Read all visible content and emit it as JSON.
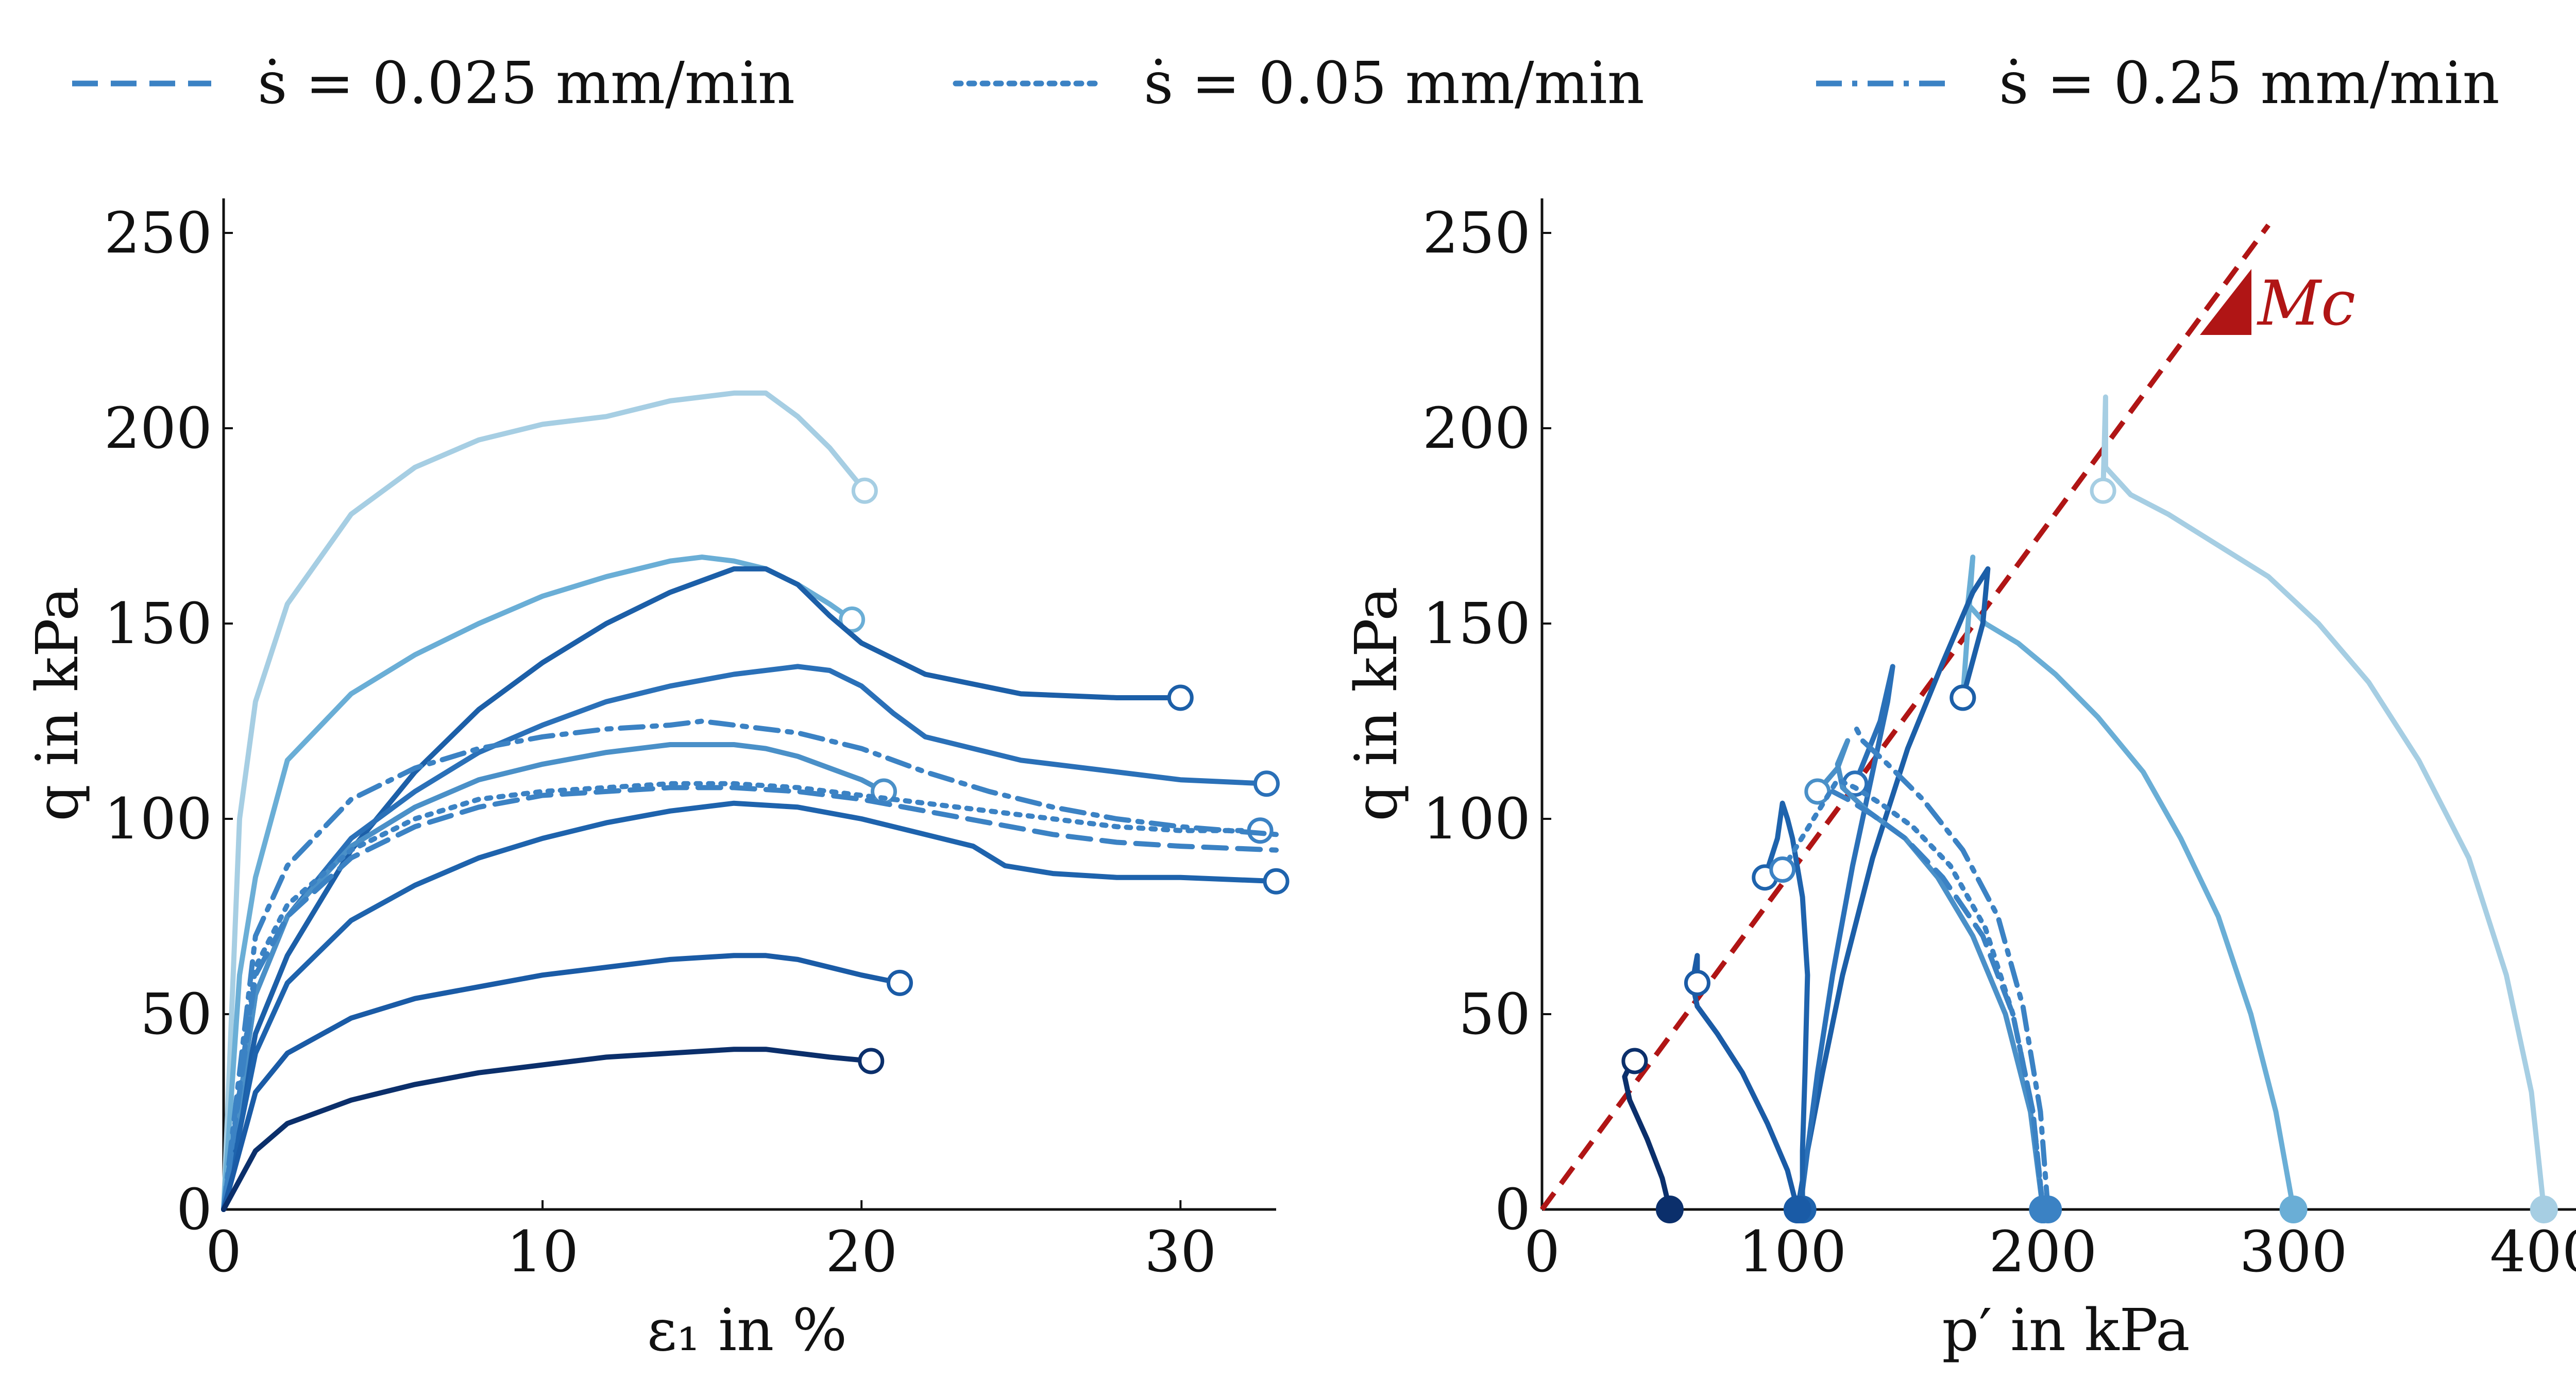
{
  "chart_data": [
    {
      "type": "line",
      "xlabel": "ε₁ in %",
      "ylabel": "q in kPa",
      "xlim": [
        0,
        33
      ],
      "ylim": [
        0,
        260
      ],
      "xticks": [
        "0",
        "10",
        "20",
        "30"
      ],
      "yticks": [
        "0",
        "50",
        "100",
        "150",
        "200",
        "250"
      ],
      "grid": false,
      "legend_position": "top, outside plot",
      "series": [
        {
          "color": "#a6cee3",
          "linestyle": "solid",
          "end_marker": "open",
          "x": [
            0,
            0.5,
            1,
            2,
            4,
            6,
            8,
            10,
            12,
            14,
            16,
            17,
            18,
            19,
            20.1
          ],
          "y": [
            0,
            100,
            130,
            155,
            178,
            190,
            197,
            201,
            203,
            207,
            209,
            209,
            203,
            195,
            184
          ]
        },
        {
          "color": "#6aaed6",
          "linestyle": "solid",
          "end_marker": "open",
          "x": [
            0,
            0.5,
            1,
            2,
            4,
            6,
            8,
            10,
            12,
            14,
            15,
            16,
            17,
            18,
            19,
            19.7
          ],
          "y": [
            0,
            60,
            85,
            115,
            132,
            142,
            150,
            157,
            162,
            166,
            167,
            166,
            164,
            160,
            155,
            151
          ]
        },
        {
          "color": "#1c5fa8",
          "linestyle": "solid",
          "end_marker": "open",
          "x": [
            0,
            1,
            2,
            4,
            6,
            8,
            10,
            12,
            14,
            16,
            17,
            18,
            19,
            20,
            22,
            25,
            28,
            30
          ],
          "y": [
            0,
            45,
            65,
            92,
            112,
            128,
            140,
            150,
            158,
            164,
            164,
            160,
            152,
            145,
            137,
            132,
            131,
            131
          ]
        },
        {
          "color": "#2a70b8",
          "linestyle": "solid",
          "end_marker": "open",
          "x": [
            0,
            1,
            2,
            4,
            6,
            8,
            10,
            12,
            14,
            16,
            18,
            19,
            20,
            21,
            22,
            25,
            28,
            30,
            32.7
          ],
          "y": [
            0,
            55,
            75,
            95,
            107,
            117,
            124,
            130,
            134,
            137,
            139,
            138,
            134,
            127,
            121,
            115,
            112,
            110,
            109
          ]
        },
        {
          "color": "#4a90c8",
          "linestyle": "solid",
          "end_marker": "open",
          "x": [
            0,
            1,
            2,
            4,
            6,
            8,
            10,
            12,
            14,
            16,
            17,
            18,
            19,
            20,
            20.7
          ],
          "y": [
            0,
            55,
            75,
            93,
            103,
            110,
            114,
            117,
            119,
            119,
            118,
            116,
            113,
            110,
            107
          ]
        },
        {
          "color": "#1e63ad",
          "linestyle": "solid",
          "end_marker": "open",
          "x": [
            0,
            1,
            2,
            4,
            6,
            8,
            10,
            12,
            14,
            16,
            18,
            20,
            22,
            23.5,
            24.5,
            26,
            28,
            30,
            33
          ],
          "y": [
            0,
            40,
            58,
            74,
            83,
            90,
            95,
            99,
            102,
            104,
            103,
            100,
            96,
            93,
            88,
            86,
            85,
            85,
            84
          ]
        },
        {
          "color": "#3b82c4",
          "linestyle": "dashed",
          "end_marker": "none",
          "x": [
            0,
            1,
            2,
            4,
            6,
            8,
            10,
            12,
            14,
            16,
            18,
            20,
            22,
            24,
            26,
            28,
            30,
            33
          ],
          "y": [
            0,
            60,
            75,
            90,
            98,
            103,
            106,
            107,
            108,
            108,
            107,
            105,
            102,
            99,
            96,
            94,
            93,
            92
          ]
        },
        {
          "color": "#3b82c4",
          "linestyle": "dotted",
          "end_marker": "open",
          "x": [
            0,
            1,
            2,
            4,
            6,
            8,
            10,
            12,
            14,
            16,
            18,
            20,
            22,
            24,
            26,
            28,
            30,
            32.5
          ],
          "y": [
            0,
            62,
            78,
            92,
            100,
            105,
            107,
            108,
            109,
            109,
            108,
            106,
            104,
            102,
            100,
            98,
            97,
            97
          ]
        },
        {
          "color": "#3b82c4",
          "linestyle": "dashdot",
          "end_marker": "none",
          "x": [
            0,
            1,
            2,
            4,
            6,
            8,
            10,
            12,
            14,
            15,
            16,
            18,
            20,
            22,
            24,
            26,
            28,
            30,
            33
          ],
          "y": [
            0,
            70,
            88,
            105,
            113,
            118,
            121,
            123,
            124,
            125,
            124,
            122,
            118,
            112,
            107,
            103,
            100,
            98,
            96
          ]
        },
        {
          "color": "#1a5ba6",
          "linestyle": "solid",
          "end_marker": "open",
          "x": [
            0,
            1,
            2,
            4,
            6,
            8,
            10,
            12,
            14,
            16,
            17,
            18,
            19,
            20,
            21.2
          ],
          "y": [
            0,
            30,
            40,
            49,
            54,
            57,
            60,
            62,
            64,
            65,
            65,
            64,
            62,
            60,
            58
          ]
        },
        {
          "color": "#0b2f6b",
          "linestyle": "solid",
          "end_marker": "open",
          "x": [
            0,
            1,
            2,
            4,
            6,
            8,
            10,
            12,
            14,
            16,
            17,
            18,
            19,
            20.3
          ],
          "y": [
            0,
            15,
            22,
            28,
            32,
            35,
            37,
            39,
            40,
            41,
            41,
            40,
            39,
            38
          ]
        }
      ]
    },
    {
      "type": "line",
      "xlabel": "p′ in kPa",
      "ylabel": "q in kPa",
      "xlim": [
        0,
        420
      ],
      "ylim": [
        0,
        260
      ],
      "xticks": [
        "0",
        "100",
        "200",
        "300",
        "400"
      ],
      "yticks": [
        "0",
        "50",
        "100",
        "150",
        "200",
        "250"
      ],
      "grid": false,
      "annotation": "Mc",
      "critical_state_line": {
        "color": "#b01515",
        "linestyle": "dashed",
        "x": [
          0,
          290
        ],
        "y": [
          0,
          252
        ]
      },
      "series": [
        {
          "color": "#a6cee3",
          "linestyle": "solid",
          "start_marker": "filled",
          "end_marker": "open",
          "x": [
            400,
            395,
            385,
            370,
            350,
            330,
            310,
            290,
            270,
            250,
            235,
            225,
            225,
            224
          ],
          "y": [
            0,
            30,
            60,
            90,
            115,
            135,
            150,
            162,
            170,
            178,
            183,
            190,
            208,
            184
          ]
        },
        {
          "color": "#6aaed6",
          "linestyle": "solid",
          "start_marker": "filled",
          "end_marker": "open",
          "x": [
            300,
            293,
            283,
            270,
            255,
            240,
            222,
            205,
            190,
            177,
            170,
            172,
            168
          ],
          "y": [
            0,
            25,
            50,
            75,
            95,
            112,
            126,
            137,
            145,
            150,
            155,
            167,
            131
          ]
        },
        {
          "color": "#1c5fa8",
          "linestyle": "solid",
          "start_marker": "filled",
          "end_marker": "open",
          "x": [
            102,
            106,
            112,
            120,
            132,
            146,
            160,
            172,
            178,
            176,
            168
          ],
          "y": [
            0,
            15,
            35,
            60,
            90,
            118,
            140,
            158,
            164,
            150,
            131
          ]
        },
        {
          "color": "#2a70b8",
          "linestyle": "solid",
          "start_marker": "filled",
          "end_marker": "open",
          "x": [
            103,
            106,
            110,
            116,
            124,
            132,
            138,
            140,
            135,
            125
          ],
          "y": [
            0,
            15,
            35,
            60,
            88,
            112,
            130,
            139,
            125,
            109
          ]
        },
        {
          "color": "#4a90c8",
          "linestyle": "solid",
          "start_marker": "filled",
          "end_marker": "open",
          "x": [
            200,
            195,
            185,
            172,
            158,
            145,
            130,
            120,
            118,
            122,
            118,
            110
          ],
          "y": [
            0,
            25,
            50,
            70,
            85,
            95,
            102,
            108,
            114,
            120,
            113,
            107
          ]
        },
        {
          "color": "#1e63ad",
          "linestyle": "solid",
          "start_marker": "filled",
          "end_marker": "open",
          "x": [
            104,
            104,
            105,
            106,
            104,
            100,
            98,
            96,
            94,
            89
          ],
          "y": [
            0,
            15,
            35,
            60,
            80,
            95,
            100,
            104,
            95,
            85
          ]
        },
        {
          "color": "#3b82c4",
          "linestyle": "dashed",
          "start_marker": "filled",
          "end_marker": "none",
          "x": [
            200,
            196,
            188,
            176,
            160,
            145,
            132,
            122,
            116
          ],
          "y": [
            0,
            25,
            50,
            70,
            85,
            95,
            101,
            105,
            107
          ]
        },
        {
          "color": "#3b82c4",
          "linestyle": "dotted",
          "start_marker": "filled",
          "end_marker": "open",
          "x": [
            200,
            196,
            188,
            177,
            163,
            148,
            135,
            125,
            118,
            96
          ],
          "y": [
            0,
            25,
            50,
            72,
            88,
            98,
            104,
            108,
            110,
            87
          ]
        },
        {
          "color": "#3b82c4",
          "linestyle": "dashdot",
          "start_marker": "filled",
          "end_marker": "none",
          "x": [
            202,
            199,
            192,
            182,
            168,
            152,
            138,
            128,
            124
          ],
          "y": [
            0,
            25,
            52,
            75,
            92,
            105,
            114,
            120,
            125
          ]
        },
        {
          "color": "#1a5ba6",
          "linestyle": "solid",
          "start_marker": "filled",
          "end_marker": "open",
          "x": [
            102,
            98,
            90,
            80,
            70,
            62,
            60,
            62,
            62
          ],
          "y": [
            0,
            10,
            22,
            35,
            45,
            52,
            58,
            65,
            58
          ]
        },
        {
          "color": "#0b2f6b",
          "linestyle": "solid",
          "start_marker": "filled",
          "end_marker": "open",
          "x": [
            51,
            48,
            42,
            35,
            33,
            36,
            37
          ],
          "y": [
            0,
            8,
            18,
            28,
            34,
            38,
            38
          ]
        }
      ]
    }
  ],
  "legend": {
    "items": [
      {
        "label": "ṡ = 0.025 mm/min",
        "linestyle": "dashed",
        "color": "#3b82c4"
      },
      {
        "label": "ṡ = 0.05 mm/min",
        "linestyle": "dotted",
        "color": "#3b82c4"
      },
      {
        "label": "ṡ = 0.25 mm/min",
        "linestyle": "dashdot",
        "color": "#3b82c4"
      }
    ]
  }
}
